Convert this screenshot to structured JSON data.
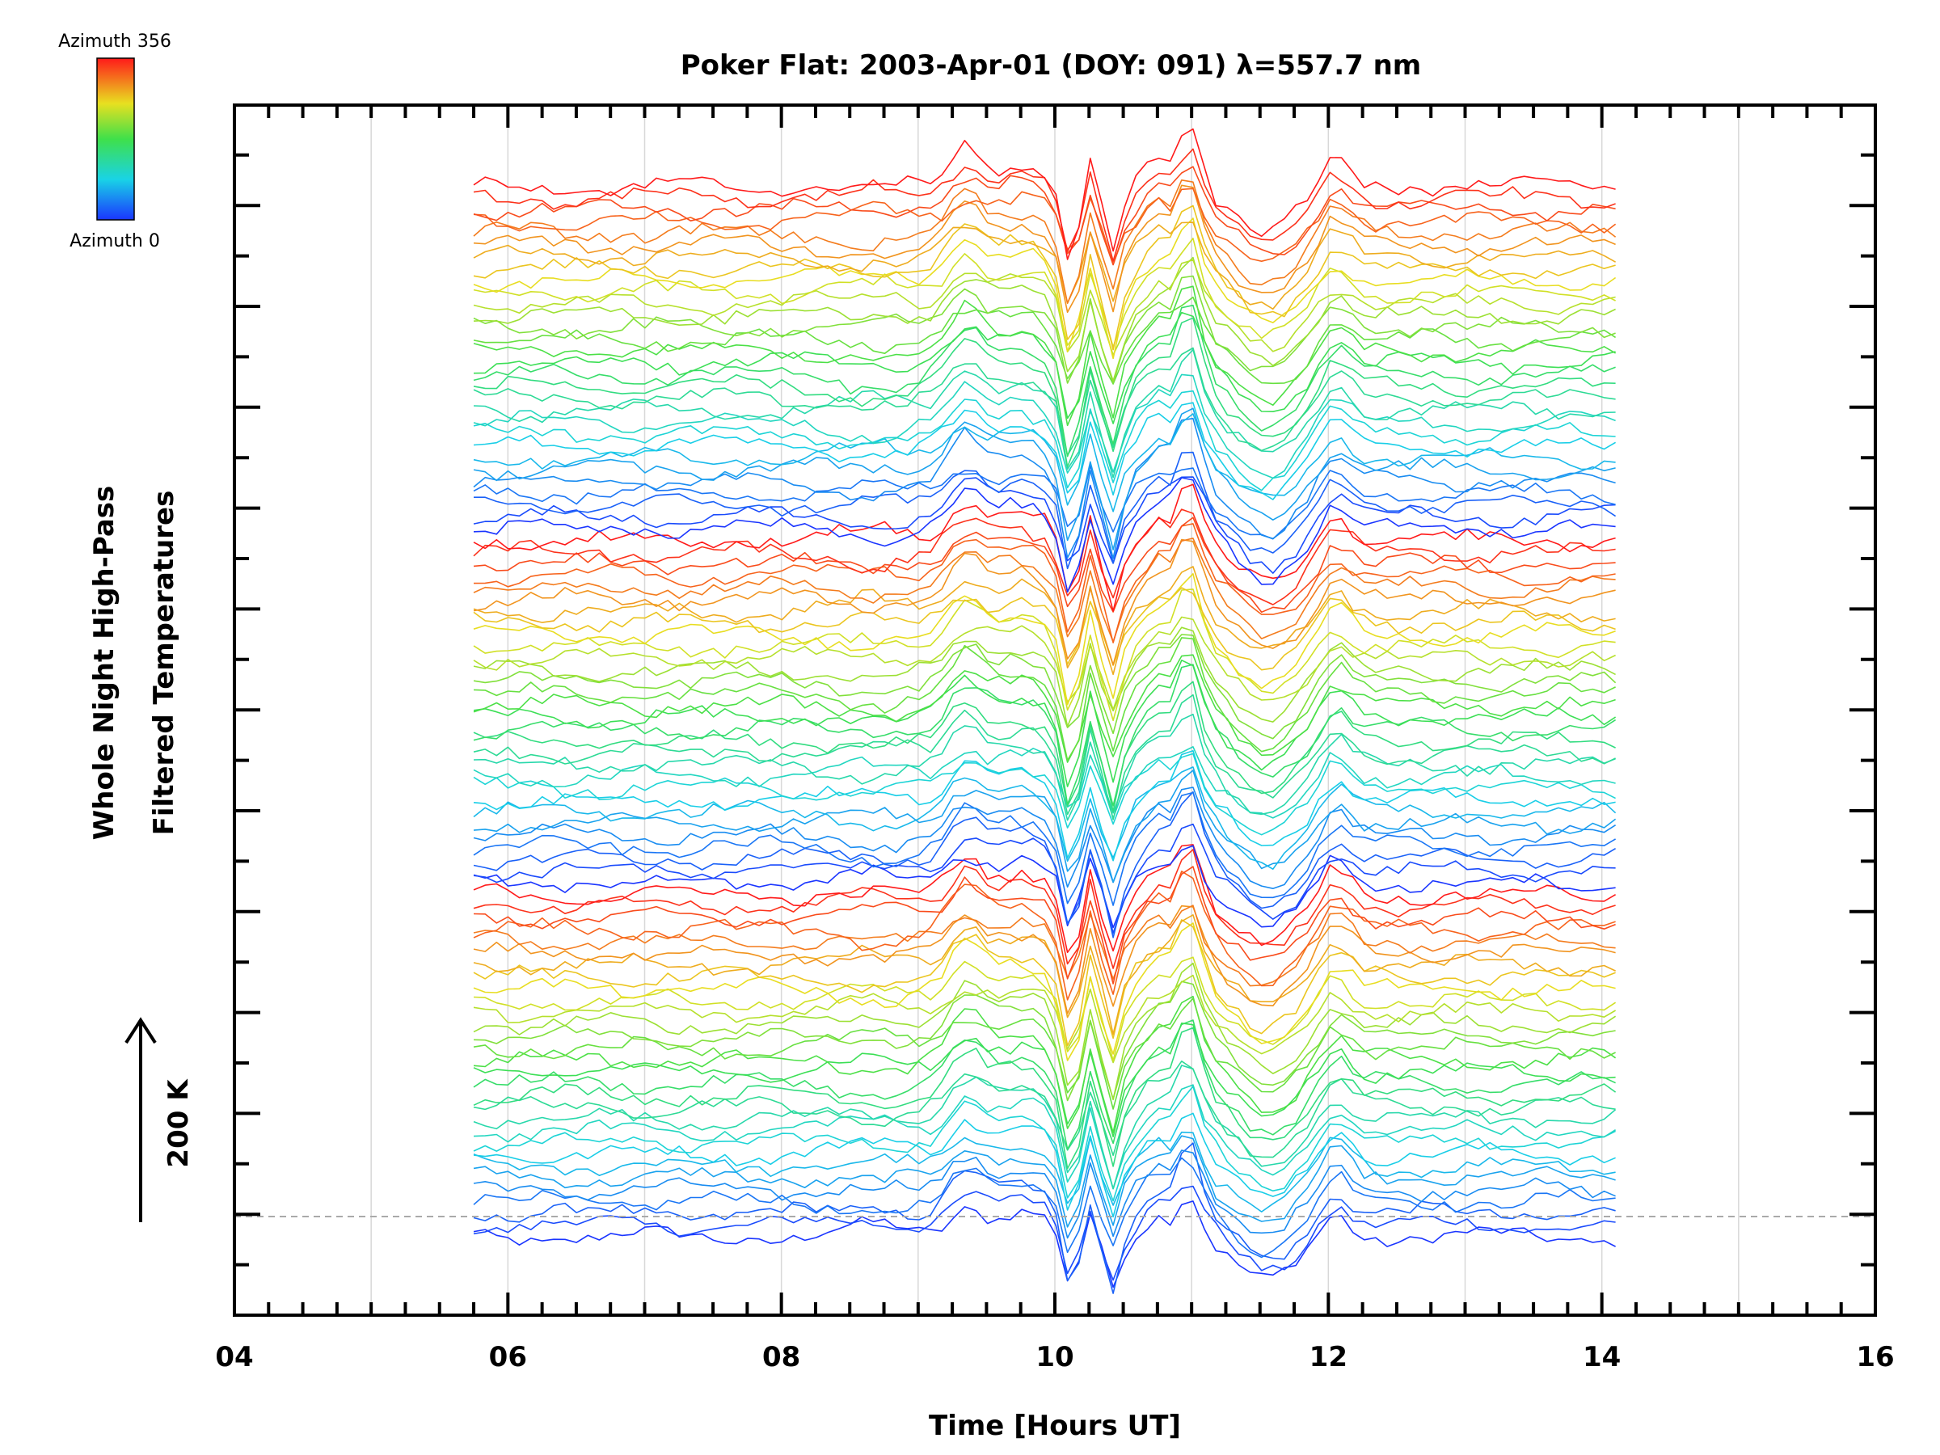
{
  "chart_data": {
    "type": "line",
    "title": "Poker Flat: 2003-Apr-01 (DOY: 091) λ=557.7 nm",
    "xlabel": "Time [Hours UT]",
    "ylabel_lines": [
      "Whole Night High-Pass",
      "Filtered Temperatures"
    ],
    "scale_label": "200 K",
    "xlim": [
      4,
      16
    ],
    "x_ticks": [
      "04",
      "06",
      "08",
      "10",
      "12",
      "14",
      "16"
    ],
    "x_tick_values": [
      4,
      6,
      8,
      10,
      12,
      14,
      16
    ],
    "grid": "vertical, every hour",
    "legend": "top-left colorbar",
    "colorbar": {
      "max_label": "Azimuth 356",
      "min_label": "Azimuth 0",
      "min": 0,
      "max": 356,
      "colormap": "rainbow (blue → cyan → green → yellow → red)"
    },
    "series_count": 90,
    "time_range": [
      5.75,
      14.1
    ],
    "description_note": "Stacked high-pass filtered temperature time series, one per azimuth, colored by azimuth"
  }
}
